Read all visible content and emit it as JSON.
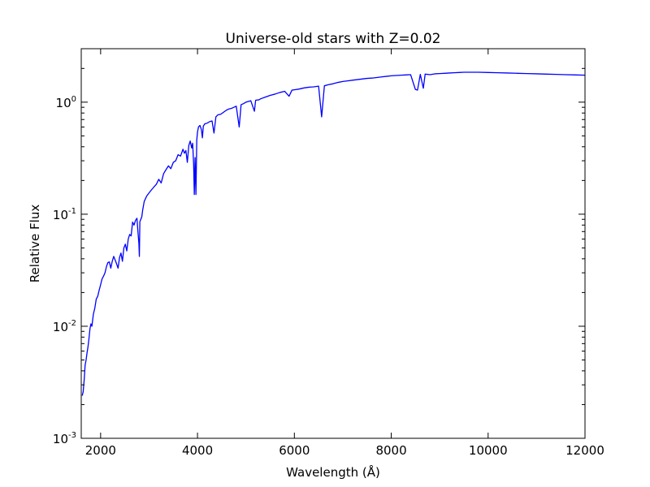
{
  "chart_data": {
    "type": "line",
    "title": "Universe-old stars with Z=0.02",
    "xlabel": "Wavelength (Å)",
    "ylabel": "Relative Flux",
    "xlim": [
      1600,
      12000
    ],
    "ylim": [
      0.001,
      3.0
    ],
    "yscale": "log",
    "grid": false,
    "x_ticks": [
      {
        "value": 2000,
        "label": "2000"
      },
      {
        "value": 4000,
        "label": "4000"
      },
      {
        "value": 6000,
        "label": "6000"
      },
      {
        "value": 8000,
        "label": "8000"
      },
      {
        "value": 10000,
        "label": "10000"
      },
      {
        "value": 12000,
        "label": "12000"
      }
    ],
    "y_ticks": [
      {
        "value": 0.001,
        "base": "10",
        "exp": "-3"
      },
      {
        "value": 0.01,
        "base": "10",
        "exp": "-2"
      },
      {
        "value": 0.1,
        "base": "10",
        "exp": "-1"
      },
      {
        "value": 1,
        "base": "10",
        "exp": "0"
      }
    ],
    "series": [
      {
        "color": "#0000ff",
        "x": [
          1620,
          1640,
          1660,
          1680,
          1700,
          1720,
          1740,
          1760,
          1780,
          1800,
          1820,
          1850,
          1880,
          1910,
          1940,
          1970,
          2000,
          2030,
          2060,
          2090,
          2120,
          2150,
          2180,
          2210,
          2240,
          2270,
          2300,
          2330,
          2360,
          2390,
          2420,
          2450,
          2480,
          2510,
          2540,
          2570,
          2600,
          2630,
          2660,
          2690,
          2720,
          2750,
          2770,
          2790,
          2800,
          2810,
          2830,
          2850,
          2870,
          2900,
          2950,
          3000,
          3050,
          3100,
          3150,
          3200,
          3250,
          3300,
          3350,
          3400,
          3450,
          3500,
          3550,
          3600,
          3650,
          3700,
          3730,
          3760,
          3790,
          3820,
          3850,
          3880,
          3900,
          3920,
          3934,
          3950,
          3968,
          3985,
          4000,
          4020,
          4050,
          4080,
          4101,
          4120,
          4150,
          4200,
          4250,
          4300,
          4340,
          4380,
          4420,
          4480,
          4550,
          4600,
          4650,
          4700,
          4750,
          4800,
          4861,
          4900,
          4950,
          5000,
          5100,
          5175,
          5200,
          5270,
          5300,
          5400,
          5500,
          5600,
          5700,
          5800,
          5890,
          5950,
          6000,
          6100,
          6200,
          6300,
          6400,
          6500,
          6563,
          6620,
          6700,
          6800,
          6900,
          7000,
          7100,
          7200,
          7300,
          7400,
          7500,
          7600,
          7700,
          7800,
          7900,
          8000,
          8100,
          8200,
          8300,
          8400,
          8498,
          8542,
          8600,
          8662,
          8700,
          8800,
          8900,
          9000,
          9100,
          9200,
          9300,
          9400,
          9500,
          9600,
          9800,
          10000,
          10200,
          10400,
          10600,
          10800,
          11000,
          11200,
          11400,
          11600,
          11800,
          12000
        ],
        "y": [
          0.0024,
          0.0026,
          0.0033,
          0.0045,
          0.005,
          0.0058,
          0.0066,
          0.0078,
          0.0095,
          0.0105,
          0.01,
          0.0128,
          0.0145,
          0.0175,
          0.0185,
          0.021,
          0.0235,
          0.0265,
          0.028,
          0.03,
          0.034,
          0.037,
          0.0375,
          0.033,
          0.038,
          0.042,
          0.039,
          0.036,
          0.033,
          0.041,
          0.045,
          0.038,
          0.05,
          0.054,
          0.047,
          0.06,
          0.066,
          0.064,
          0.085,
          0.08,
          0.088,
          0.092,
          0.07,
          0.055,
          0.042,
          0.086,
          0.09,
          0.095,
          0.11,
          0.13,
          0.145,
          0.155,
          0.165,
          0.175,
          0.185,
          0.205,
          0.19,
          0.23,
          0.25,
          0.27,
          0.255,
          0.29,
          0.3,
          0.34,
          0.33,
          0.38,
          0.35,
          0.37,
          0.29,
          0.41,
          0.45,
          0.39,
          0.43,
          0.28,
          0.15,
          0.32,
          0.15,
          0.46,
          0.54,
          0.6,
          0.62,
          0.57,
          0.48,
          0.61,
          0.64,
          0.65,
          0.67,
          0.68,
          0.53,
          0.74,
          0.77,
          0.78,
          0.82,
          0.85,
          0.87,
          0.88,
          0.9,
          0.92,
          0.6,
          0.95,
          0.97,
          1.0,
          1.03,
          0.83,
          1.04,
          1.05,
          1.07,
          1.11,
          1.15,
          1.18,
          1.22,
          1.25,
          1.13,
          1.28,
          1.29,
          1.31,
          1.34,
          1.36,
          1.37,
          1.39,
          0.74,
          1.4,
          1.43,
          1.46,
          1.5,
          1.53,
          1.55,
          1.57,
          1.59,
          1.61,
          1.63,
          1.64,
          1.66,
          1.68,
          1.7,
          1.72,
          1.73,
          1.74,
          1.75,
          1.76,
          1.3,
          1.28,
          1.77,
          1.33,
          1.78,
          1.76,
          1.79,
          1.8,
          1.81,
          1.82,
          1.83,
          1.84,
          1.85,
          1.85,
          1.85,
          1.84,
          1.83,
          1.82,
          1.81,
          1.8,
          1.79,
          1.78,
          1.77,
          1.76,
          1.75,
          1.74
        ]
      }
    ]
  }
}
